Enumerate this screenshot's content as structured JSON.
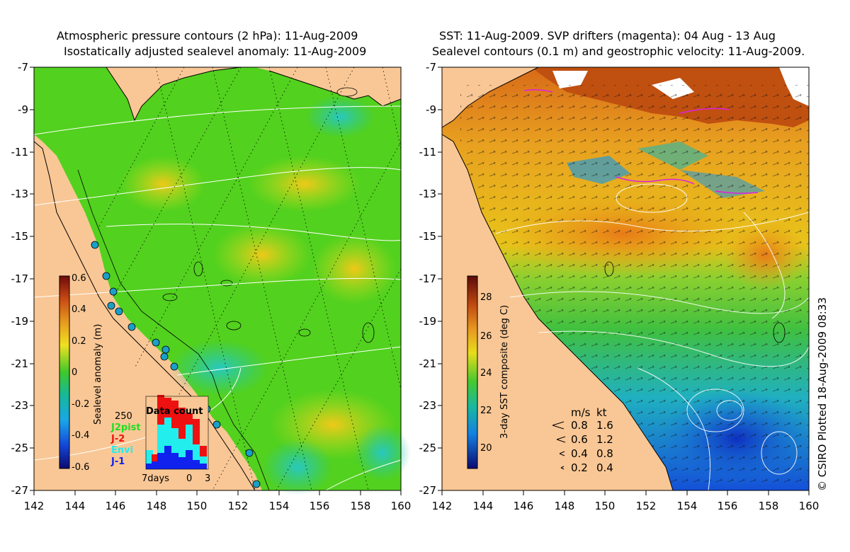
{
  "left_panel": {
    "title_line1": "Atmospheric pressure contours (2 hPa): 11-Aug-2009",
    "title_line2": "Isostatically adjusted sealevel anomaly: 11-Aug-2009",
    "colorbar": {
      "label": "Sealevel anomaly (m)",
      "ticks": [
        "0.6",
        "0.4",
        "0.2",
        "0",
        "-0.2",
        "-0.4",
        "-0.6"
      ],
      "min": -0.6,
      "max": 0.6
    },
    "data_count": {
      "title": "Data count",
      "scale_label": "250",
      "legend": [
        {
          "name": "J2pist",
          "color": "#22dd22"
        },
        {
          "name": "J-2",
          "color": "#ee1111"
        },
        {
          "name": "Envi",
          "color": "#22eeee"
        },
        {
          "name": "J-1",
          "color": "#1122ee"
        }
      ],
      "axis_labels": [
        "7days",
        "0",
        "3"
      ]
    }
  },
  "right_panel": {
    "title_line1": "SST: 11-Aug-2009. SVP drifters (magenta): 04 Aug - 13 Aug",
    "title_line2": "Sealevel contours (0.1 m) and geostrophic velocity: 11-Aug-2009.",
    "colorbar": {
      "label": "3-day SST composite (deg C)",
      "ticks": [
        "28",
        "26",
        "24",
        "22",
        "20"
      ],
      "min": 19,
      "max": 29
    },
    "velocity_legend": {
      "header_ms": "m/s",
      "header_kt": "kt",
      "rows": [
        {
          "ms": "0.8",
          "kt": "1.6"
        },
        {
          "ms": "0.6",
          "kt": "1.2"
        },
        {
          "ms": "0.4",
          "kt": "0.8"
        },
        {
          "ms": "0.2",
          "kt": "0.4"
        }
      ]
    }
  },
  "axes": {
    "lat_ticks": [
      "-7",
      "-9",
      "-11",
      "-13",
      "-15",
      "-17",
      "-19",
      "-21",
      "-23",
      "-25",
      "-27"
    ],
    "lon_ticks": [
      "142",
      "144",
      "146",
      "148",
      "150",
      "152",
      "154",
      "156",
      "158",
      "160"
    ]
  },
  "credit": "© CSIRO Plotted 18-Aug-2009 08:33",
  "colors": {
    "land": "#f9c795",
    "sla_green": "#52d11e",
    "sst_yellow": "#e8c41a",
    "ocean_blue": "#1f60e0"
  }
}
